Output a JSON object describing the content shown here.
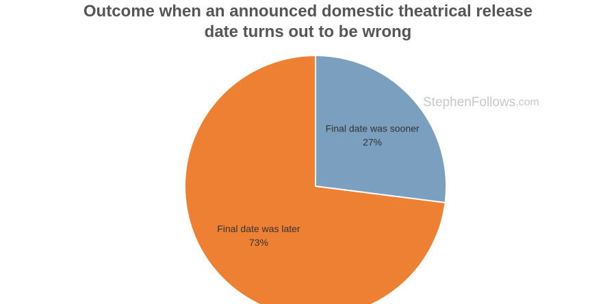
{
  "chart_data": {
    "type": "pie",
    "title": "Outcome when an announced domestic theatrical release date turns out to be wrong",
    "categories": [
      "Final date was sooner",
      "Final date was later"
    ],
    "values": [
      27,
      73
    ],
    "value_labels": [
      "27%",
      "73%"
    ],
    "colors": [
      "#7a9fbf",
      "#ee8034"
    ]
  },
  "watermark": {
    "name": "StephenFollows",
    "suffix": ".com"
  }
}
